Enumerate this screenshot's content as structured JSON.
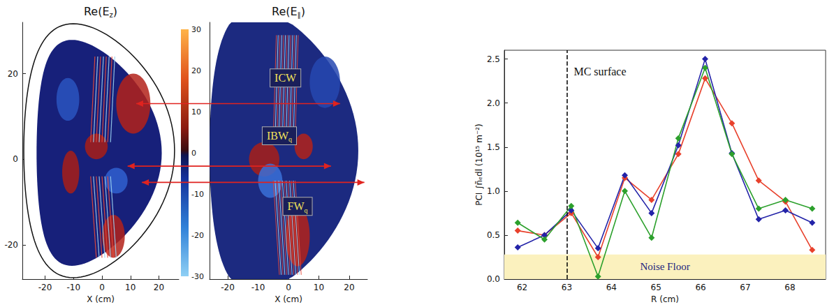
{
  "chart_data": [
    {
      "type": "field_map",
      "title": {
        "base": "Re(E",
        "sub": "z",
        "tail": ")"
      },
      "xlabel": "X (cm)",
      "xlim": [
        -28,
        27
      ],
      "xticks": [
        -20,
        -10,
        0,
        10,
        20
      ],
      "ylim": [
        -28,
        32
      ],
      "yticks": [
        -20,
        0,
        20
      ],
      "colorbar": {
        "range": [
          -30,
          30
        ],
        "ticks": [
          -30,
          -20,
          -10,
          0,
          10,
          20,
          30
        ]
      }
    },
    {
      "type": "field_map",
      "title": {
        "base": "Re(E",
        "sub": "∥",
        "tail": ")"
      },
      "xlabel": "X (cm)",
      "xlim": [
        -26,
        26
      ],
      "xticks": [
        -20,
        -10,
        0,
        10,
        20
      ],
      "ylim": [
        -28,
        32
      ],
      "tick_labels": "x",
      "annotations": [
        {
          "base": "ICW"
        },
        {
          "base": "IBW",
          "sub": "q"
        },
        {
          "base": "FW",
          "sub": "q"
        }
      ]
    },
    {
      "type": "line",
      "xlabel": "R (cm)",
      "ylabel": "PCI ∫ñₑdl (10¹⁵ m⁻²)",
      "xlim": [
        61.6,
        68.8
      ],
      "xticks": [
        62,
        63,
        64,
        65,
        66,
        67,
        68
      ],
      "ylim": [
        0,
        2.6
      ],
      "yticks": [
        {
          "value": 0,
          "label": "0.0"
        },
        0.5,
        {
          "value": 1,
          "label": "1.0"
        },
        1.5,
        {
          "value": 2,
          "label": "2.0"
        },
        2.5
      ],
      "grid": false,
      "marker": "diamond",
      "x": [
        61.9,
        62.5,
        63.1,
        63.7,
        64.3,
        64.9,
        65.5,
        66.1,
        66.7,
        67.3,
        67.9,
        68.5
      ],
      "series": [
        {
          "color": "#e8412c",
          "values": [
            0.55,
            0.5,
            0.75,
            0.25,
            1.15,
            0.9,
            1.42,
            2.28,
            1.77,
            1.12,
            0.88,
            0.33
          ]
        },
        {
          "color": "#2323a8",
          "values": [
            0.36,
            0.5,
            0.78,
            0.35,
            1.18,
            0.75,
            1.52,
            2.5,
            1.43,
            0.68,
            0.78,
            0.64
          ]
        },
        {
          "color": "#2ca02c",
          "values": [
            0.64,
            0.45,
            0.83,
            0.03,
            1.0,
            0.47,
            1.6,
            2.4,
            1.42,
            0.8,
            0.9,
            0.8
          ]
        }
      ],
      "noise_floor": {
        "label": "Noise Floor",
        "range": [
          0,
          0.28
        ]
      },
      "mc_surface": {
        "label": "MC surface",
        "x": 63.0
      }
    }
  ]
}
